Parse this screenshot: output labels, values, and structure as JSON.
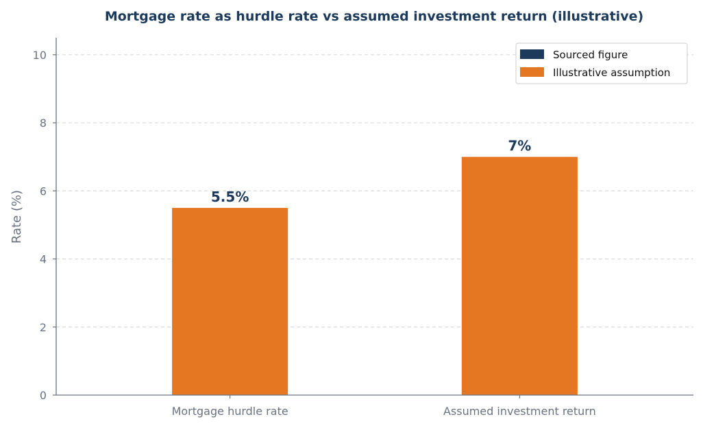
{
  "chart_data": {
    "type": "bar",
    "title": "Mortgage rate as hurdle rate vs assumed investment return (illustrative)",
    "xlabel": "",
    "ylabel": "Rate (%)",
    "categories": [
      "Mortgage hurdle rate",
      "Assumed investment return"
    ],
    "values": [
      5.5,
      7
    ],
    "data_labels": [
      "5.5%",
      "7%"
    ],
    "bar_legend_keys": [
      "illustrative",
      "illustrative"
    ],
    "ylim": [
      0,
      10.5
    ],
    "yticks": [
      0,
      2,
      4,
      6,
      8,
      10
    ],
    "ytick_labels": [
      "0",
      "2",
      "4",
      "6",
      "8",
      "10"
    ],
    "grid": "horizontal-dashed",
    "legend_placement": "top-right",
    "legend": [
      {
        "key": "sourced",
        "label": "Sourced figure",
        "color": "#1b3a5c"
      },
      {
        "key": "illustrative",
        "label": "Illustrative assumption",
        "color": "#e57722"
      }
    ],
    "colors": {
      "title": "#1b3a5c",
      "axis": "#6b7280",
      "grid": "#d9d9d9",
      "data_label": "#1b3a5c"
    }
  }
}
